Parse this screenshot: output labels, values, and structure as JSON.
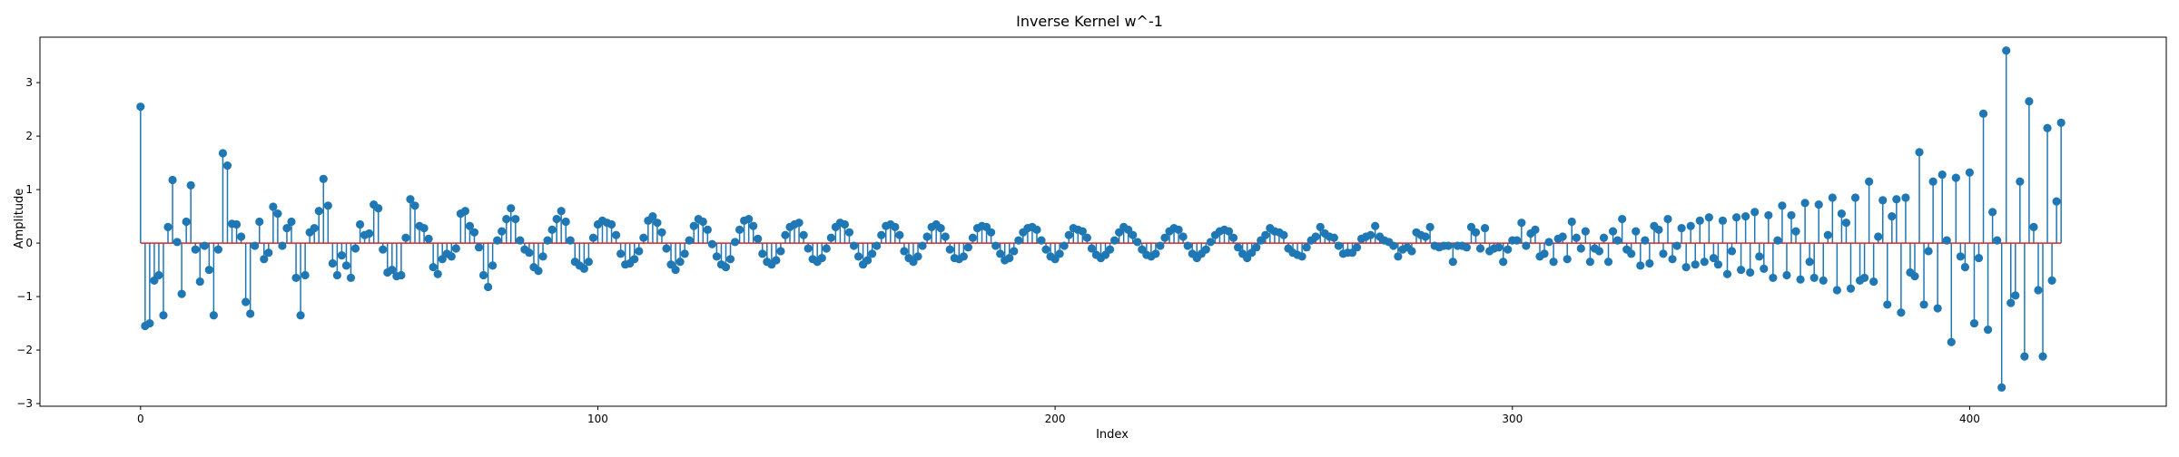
{
  "chart_data": {
    "type": "stem",
    "title": "Inverse Kernel w^-1",
    "xlabel": "Index",
    "ylabel": "Amplitude",
    "xlim": [
      -22,
      443
    ],
    "ylim": [
      -3.05,
      3.85
    ],
    "xticks": [
      0,
      100,
      200,
      300,
      400
    ],
    "yticks": [
      -3,
      -2,
      -1,
      0,
      1,
      2,
      3
    ],
    "grid": false,
    "legend": "none",
    "colors": {
      "stem": "#1f77b4",
      "marker": "#1f77b4",
      "baseline": "#d62728"
    },
    "series": [
      {
        "x_start": 0,
        "x_step": 1,
        "values": [
          2.55,
          -1.55,
          -1.5,
          -0.7,
          -0.6,
          -1.35,
          0.3,
          1.18,
          0.02,
          -0.95,
          0.4,
          1.08,
          -0.12,
          -0.72,
          -0.05,
          -0.5,
          -1.35,
          -0.12,
          1.68,
          1.45,
          0.36,
          0.35,
          0.12,
          -1.1,
          -1.32,
          -0.05,
          0.4,
          -0.3,
          -0.18,
          0.68,
          0.55,
          -0.05,
          0.28,
          0.4,
          -0.65,
          -1.35,
          -0.6,
          0.2,
          0.28,
          0.6,
          1.2,
          0.7,
          -0.38,
          -0.6,
          -0.23,
          -0.42,
          -0.65,
          -0.1,
          0.35,
          0.15,
          0.18,
          0.72,
          0.65,
          -0.12,
          -0.55,
          -0.5,
          -0.62,
          -0.6,
          0.1,
          0.82,
          0.7,
          0.32,
          0.28,
          0.08,
          -0.45,
          -0.58,
          -0.3,
          -0.2,
          -0.25,
          -0.1,
          0.55,
          0.6,
          0.32,
          0.2,
          -0.08,
          -0.6,
          -0.82,
          -0.42,
          0.05,
          0.22,
          0.45,
          0.65,
          0.45,
          0.05,
          -0.12,
          -0.18,
          -0.45,
          -0.52,
          -0.25,
          0.05,
          0.25,
          0.45,
          0.6,
          0.4,
          0.05,
          -0.35,
          -0.42,
          -0.48,
          -0.35,
          0.1,
          0.35,
          0.42,
          0.38,
          0.35,
          0.15,
          -0.2,
          -0.4,
          -0.38,
          -0.3,
          -0.15,
          0.1,
          0.42,
          0.5,
          0.38,
          0.2,
          -0.1,
          -0.4,
          -0.5,
          -0.35,
          -0.2,
          0.05,
          0.32,
          0.45,
          0.4,
          0.25,
          -0.02,
          -0.25,
          -0.4,
          -0.45,
          -0.3,
          0.02,
          0.25,
          0.42,
          0.45,
          0.32,
          0.08,
          -0.2,
          -0.35,
          -0.4,
          -0.32,
          -0.15,
          0.15,
          0.3,
          0.35,
          0.38,
          0.15,
          -0.1,
          -0.3,
          -0.35,
          -0.28,
          -0.1,
          0.1,
          0.3,
          0.38,
          0.35,
          0.2,
          -0.05,
          -0.25,
          -0.4,
          -0.32,
          -0.2,
          -0.05,
          0.15,
          0.32,
          0.35,
          0.3,
          0.15,
          -0.15,
          -0.28,
          -0.35,
          -0.25,
          -0.05,
          0.12,
          0.3,
          0.35,
          0.28,
          0.12,
          -0.12,
          -0.28,
          -0.3,
          -0.25,
          -0.08,
          0.1,
          0.28,
          0.32,
          0.3,
          0.2,
          -0.05,
          -0.2,
          -0.32,
          -0.28,
          -0.15,
          0.05,
          0.2,
          0.28,
          0.3,
          0.25,
          0.05,
          -0.12,
          -0.25,
          -0.3,
          -0.2,
          -0.05,
          0.15,
          0.28,
          0.25,
          0.22,
          0.1,
          -0.1,
          -0.22,
          -0.28,
          -0.22,
          -0.12,
          0.05,
          0.2,
          0.3,
          0.25,
          0.15,
          0.02,
          -0.12,
          -0.22,
          -0.25,
          -0.2,
          -0.05,
          0.1,
          0.22,
          0.28,
          0.25,
          0.12,
          -0.05,
          -0.2,
          -0.28,
          -0.2,
          -0.12,
          0.02,
          0.15,
          0.22,
          0.25,
          0.22,
          0.1,
          -0.08,
          -0.2,
          -0.28,
          -0.18,
          -0.08,
          0.05,
          0.15,
          0.28,
          0.22,
          0.2,
          0.15,
          -0.1,
          -0.18,
          -0.22,
          -0.25,
          -0.08,
          0.05,
          0.12,
          0.3,
          0.18,
          0.12,
          0.1,
          -0.05,
          -0.2,
          -0.18,
          -0.18,
          -0.08,
          0.08,
          0.12,
          0.15,
          0.32,
          0.12,
          0.05,
          0.02,
          -0.05,
          -0.25,
          -0.12,
          -0.08,
          -0.15,
          0.2,
          0.15,
          0.12,
          0.3,
          -0.05,
          -0.08,
          -0.05,
          -0.05,
          -0.35,
          -0.05,
          -0.05,
          -0.08,
          0.3,
          0.2,
          -0.1,
          0.28,
          -0.15,
          -0.1,
          -0.08,
          -0.35,
          -0.12,
          0.05,
          0.05,
          0.38,
          -0.05,
          0.18,
          0.25,
          -0.25,
          -0.2,
          0.02,
          -0.35,
          0.08,
          0.12,
          -0.3,
          0.4,
          0.1,
          -0.1,
          0.22,
          -0.35,
          -0.1,
          -0.15,
          0.1,
          -0.35,
          0.22,
          0.05,
          0.45,
          -0.12,
          -0.2,
          0.22,
          -0.42,
          0.05,
          -0.38,
          0.32,
          0.25,
          -0.2,
          0.45,
          -0.3,
          -0.05,
          0.28,
          -0.45,
          0.32,
          -0.4,
          0.42,
          -0.35,
          0.48,
          -0.28,
          -0.4,
          0.42,
          -0.58,
          -0.15,
          0.48,
          -0.5,
          0.5,
          -0.55,
          0.58,
          -0.25,
          -0.48,
          0.52,
          -0.65,
          0.05,
          0.7,
          -0.6,
          0.52,
          0.22,
          -0.68,
          0.75,
          -0.35,
          -0.65,
          0.72,
          -0.7,
          0.15,
          0.85,
          -0.88,
          0.55,
          0.38,
          -0.85,
          0.85,
          -0.7,
          -0.65,
          1.15,
          -0.72,
          0.12,
          0.8,
          -1.15,
          0.5,
          0.82,
          -1.3,
          0.85,
          -0.55,
          -0.62,
          1.7,
          -1.15,
          -0.15,
          1.15,
          -1.22,
          1.28,
          0.05,
          -1.85,
          1.22,
          -0.25,
          -0.45,
          1.32,
          -1.5,
          -0.28,
          2.42,
          -1.62,
          0.58,
          0.05,
          -2.7,
          3.6,
          -1.12,
          -0.98,
          1.15,
          -2.12,
          2.65,
          0.3,
          -0.88,
          -2.12,
          2.15,
          -0.7,
          0.78,
          2.25
        ]
      }
    ]
  }
}
